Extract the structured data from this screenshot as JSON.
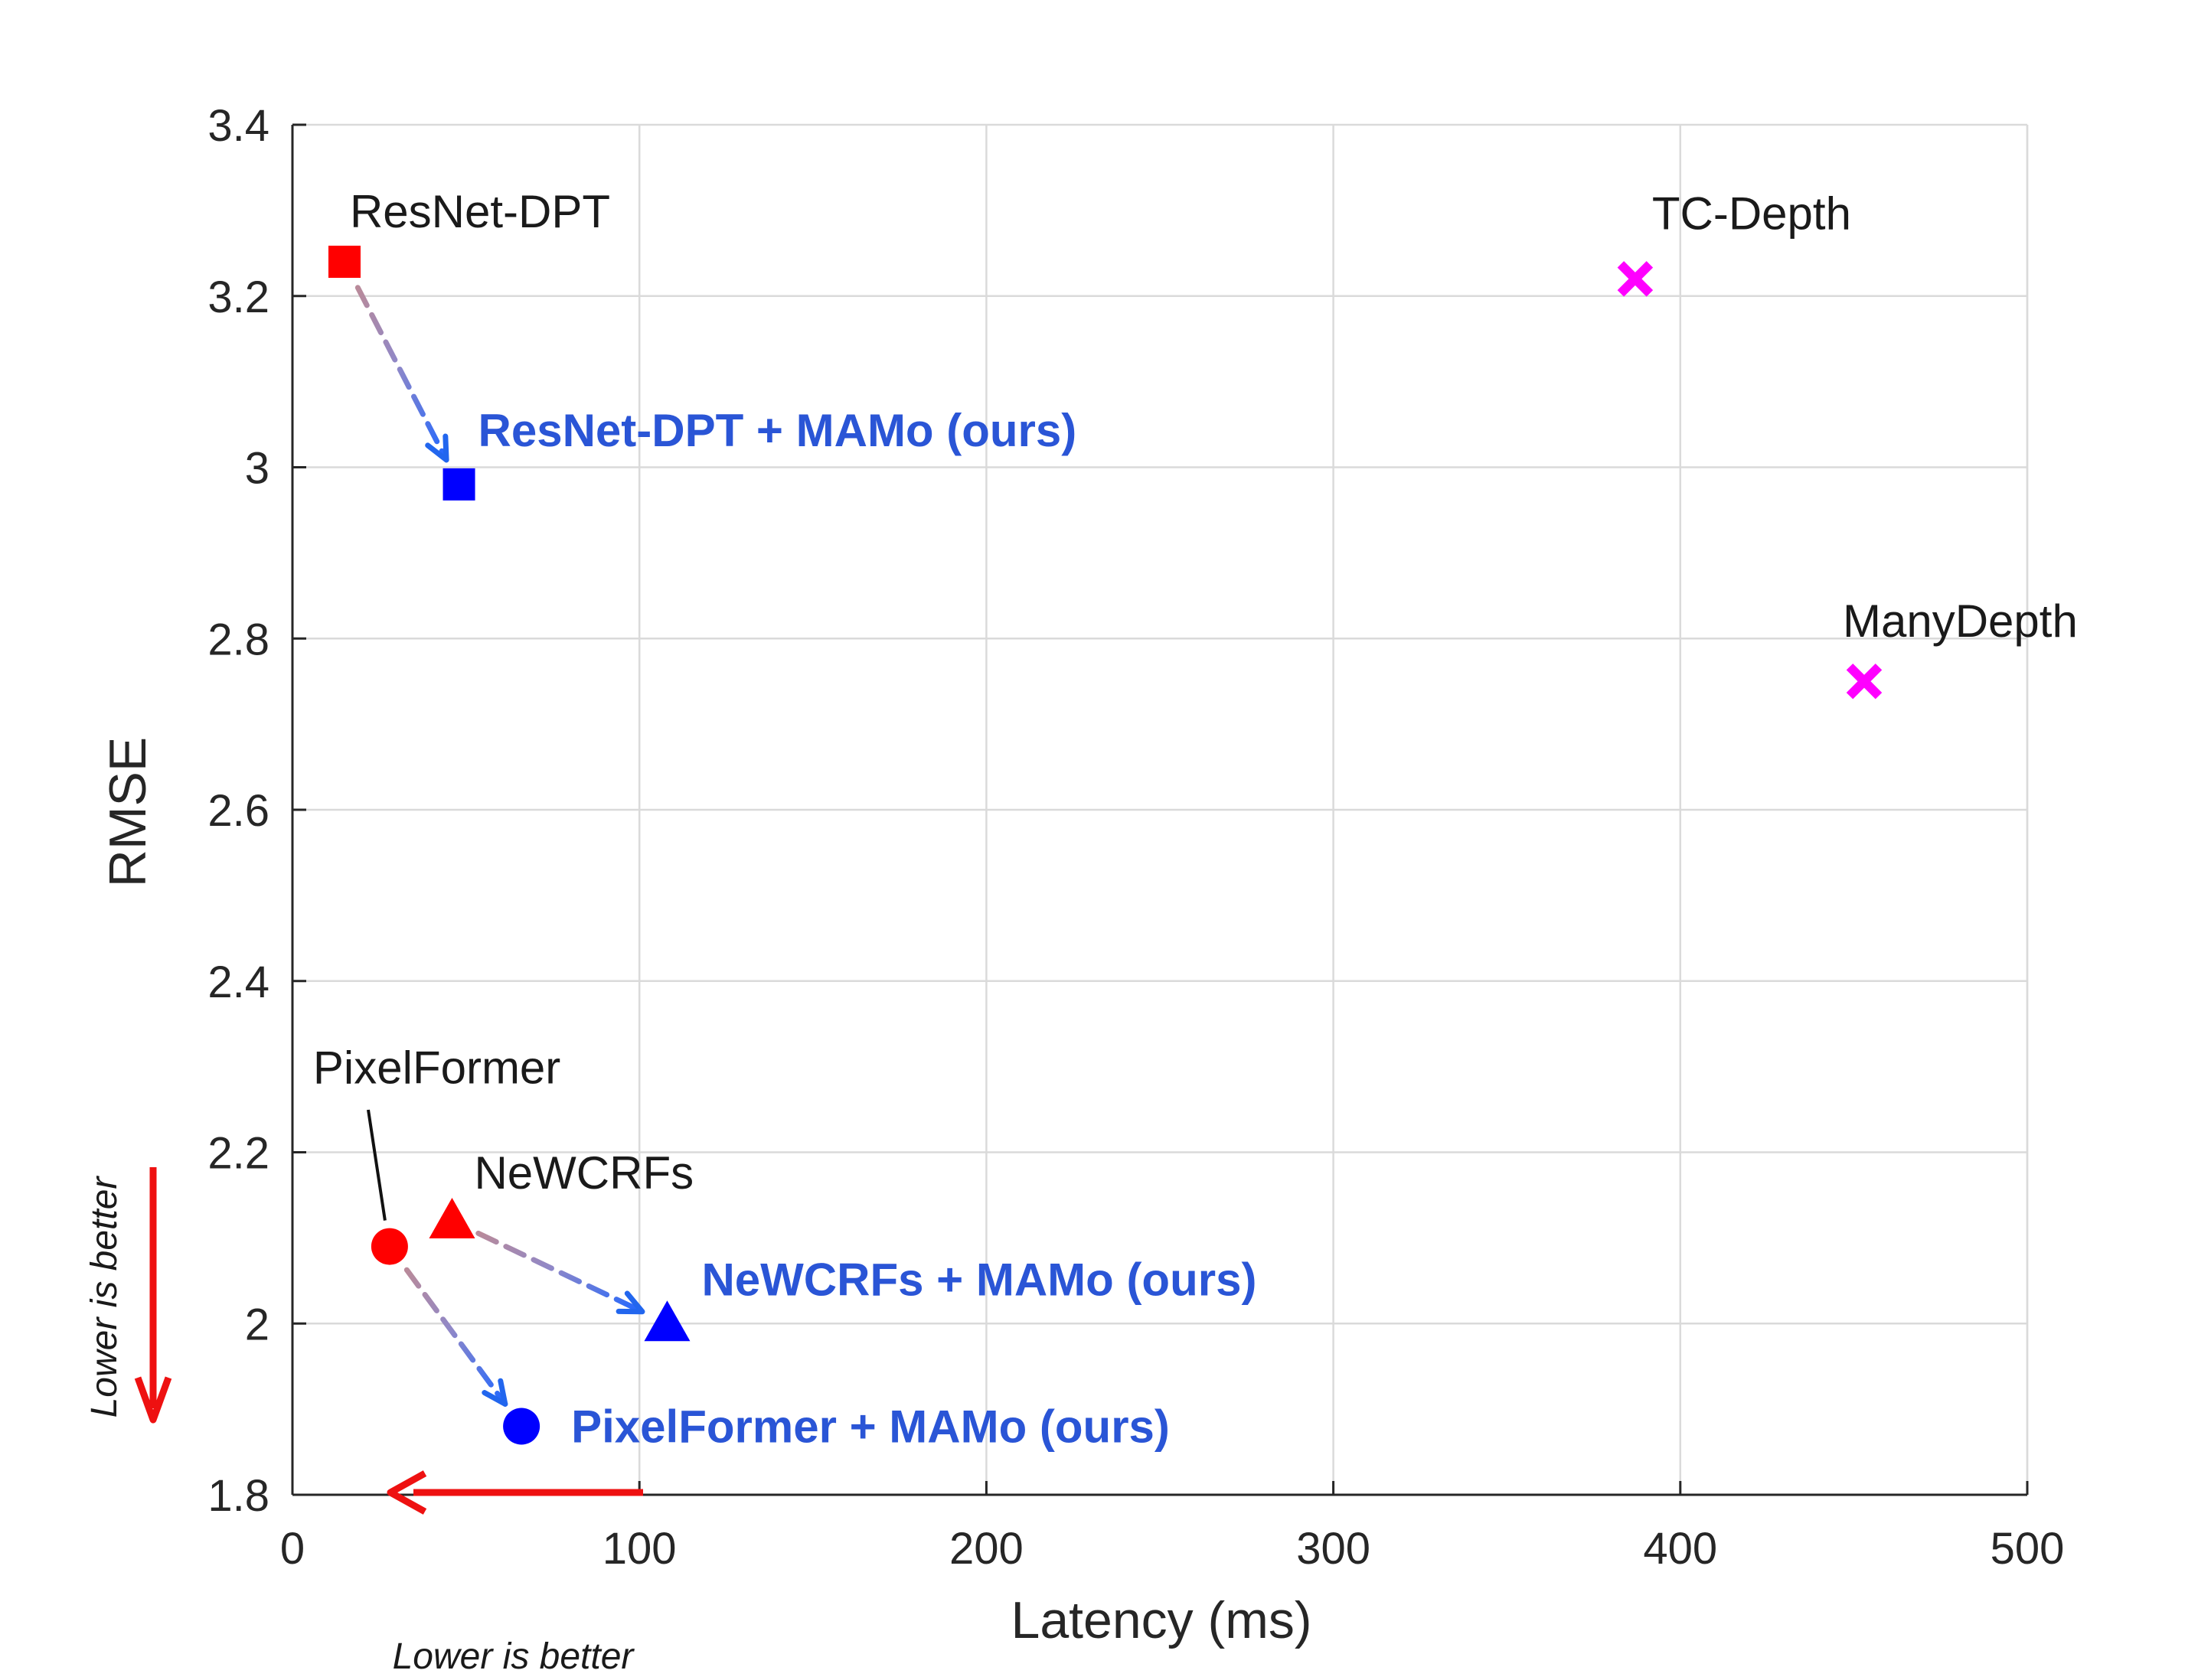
{
  "chart_data": {
    "type": "scatter",
    "title": "",
    "xlabel": "Latency (ms)",
    "ylabel": "RMSE",
    "xlim": [
      0,
      500
    ],
    "ylim": [
      1.8,
      3.4
    ],
    "xticks": [
      "0",
      "100",
      "200",
      "300",
      "400",
      "500"
    ],
    "yticks": [
      "1.8",
      "2",
      "2.2",
      "2.4",
      "2.6",
      "2.8",
      "3",
      "3.2",
      "3.4"
    ],
    "grid": true,
    "colors": {
      "baseline": "#ff0000",
      "ours": "#0000ff",
      "ours_label": "#2a55d6",
      "other": "#ff00ff",
      "arrow_baseline": "#b0859c",
      "arrow_ours": "#2266ee",
      "better": "#ee1111"
    },
    "points": [
      {
        "label": "ResNet-DPT",
        "x": 15,
        "y": 3.24,
        "marker": "square",
        "group": "baseline"
      },
      {
        "label": "ResNet-DPT + MAMo (ours)",
        "x": 48,
        "y": 2.98,
        "marker": "square",
        "group": "ours"
      },
      {
        "label": "TC-Depth",
        "x": 387,
        "y": 3.22,
        "marker": "x",
        "group": "other"
      },
      {
        "label": "ManyDepth",
        "x": 453,
        "y": 2.75,
        "marker": "x",
        "group": "other"
      },
      {
        "label": "PixelFormer",
        "x": 28,
        "y": 2.09,
        "marker": "circle",
        "group": "baseline"
      },
      {
        "label": "PixelFormer + MAMo (ours)",
        "x": 66,
        "y": 1.88,
        "marker": "circle",
        "group": "ours"
      },
      {
        "label": "NeWCRFs",
        "x": 46,
        "y": 2.12,
        "marker": "triangle",
        "group": "baseline"
      },
      {
        "label": "NeWCRFs + MAMo (ours)",
        "x": 108,
        "y": 2.0,
        "marker": "triangle",
        "group": "ours"
      }
    ],
    "arrows": [
      {
        "from": "ResNet-DPT",
        "to": "ResNet-DPT + MAMo (ours)"
      },
      {
        "from": "PixelFormer",
        "to": "PixelFormer + MAMo (ours)"
      },
      {
        "from": "NeWCRFs",
        "to": "NeWCRFs + MAMo (ours)"
      }
    ],
    "annotations": {
      "x_better": "Lower is better",
      "y_better": "Lower is better"
    }
  }
}
